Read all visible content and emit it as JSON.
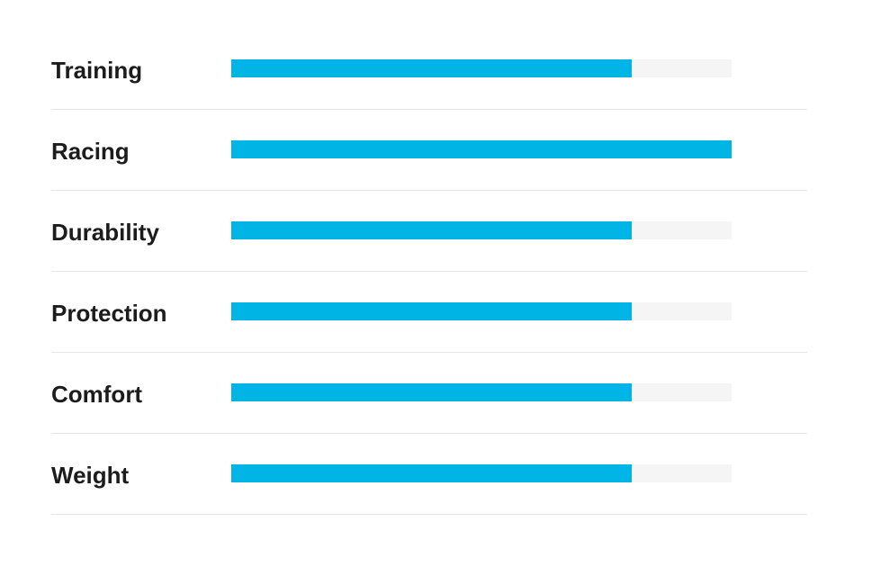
{
  "chart_data": {
    "type": "bar",
    "orientation": "horizontal",
    "categories": [
      "Training",
      "Racing",
      "Durability",
      "Protection",
      "Comfort",
      "Weight"
    ],
    "values": [
      0.8,
      1.0,
      0.8,
      0.8,
      0.8,
      0.8
    ],
    "xlim": [
      0,
      1
    ],
    "grid": false,
    "colors": {
      "fill": "#00b4e6",
      "track": "#f5f5f5",
      "divider": "#e6e6e6",
      "label": "#1c1c1c"
    }
  }
}
